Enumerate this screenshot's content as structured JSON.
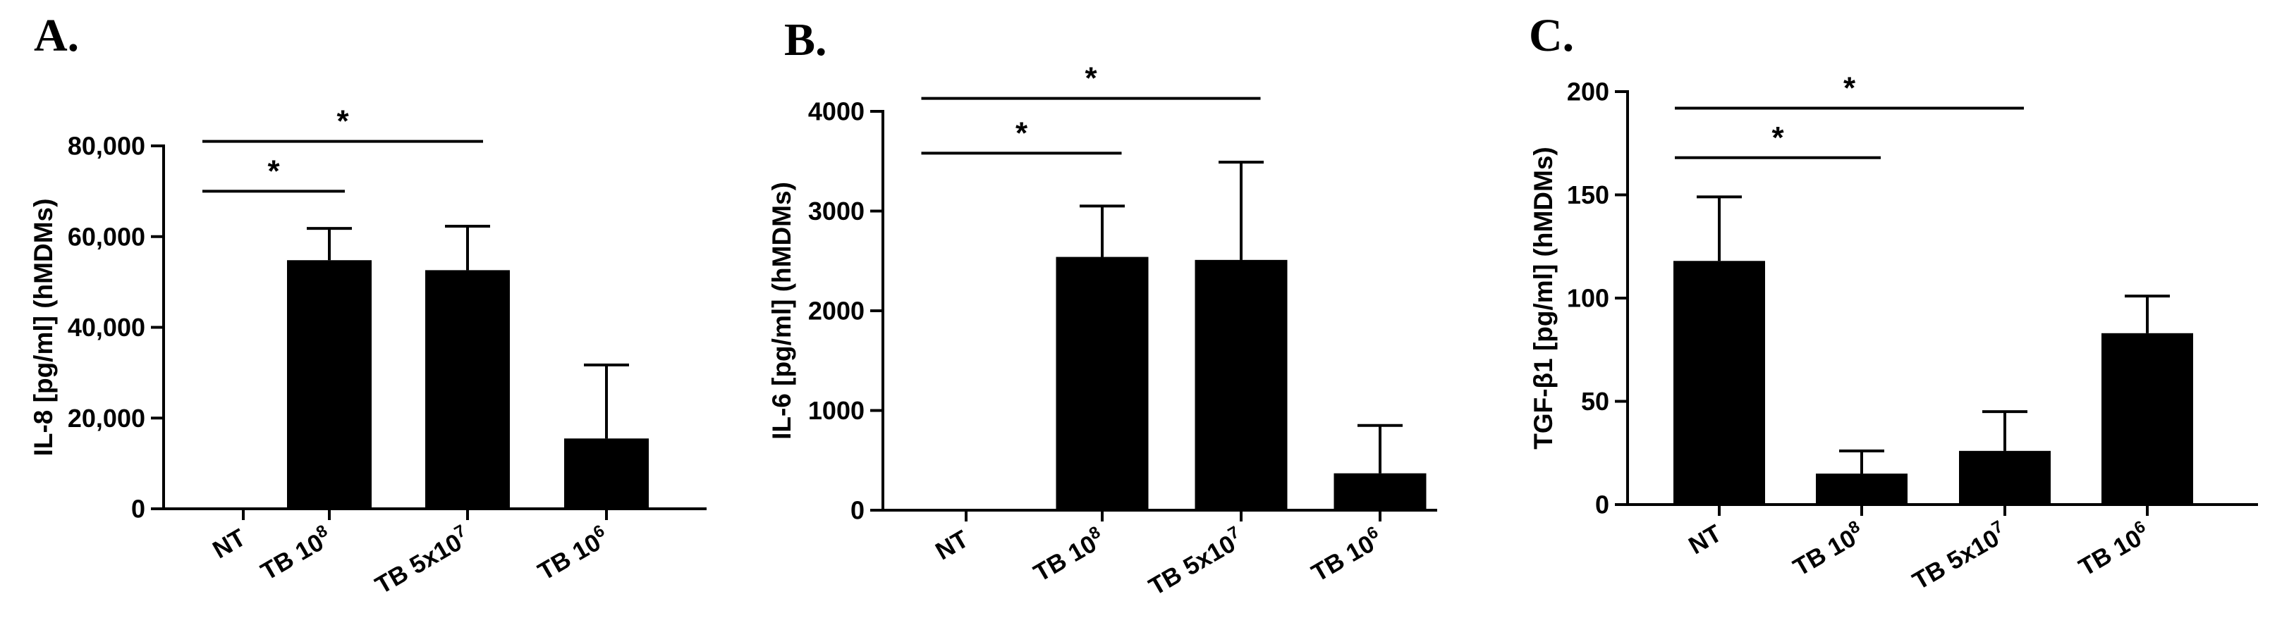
{
  "chart_data": [
    {
      "type": "bar",
      "panel_label": "A.",
      "ylabel": "IL-8 [pg/ml] (hMDMs)",
      "categories": [
        "NT",
        "TB 10^8",
        "TB 5x10^7",
        "TB 10^6"
      ],
      "category_labels": [
        {
          "base": "NT",
          "sup": ""
        },
        {
          "base": "TB 10",
          "sup": "8"
        },
        {
          "base": "TB 5x10",
          "sup": "7"
        },
        {
          "base": "TB 10",
          "sup": "6"
        }
      ],
      "values": [
        0,
        54800,
        52600,
        15500
      ],
      "errors": [
        0,
        7000,
        9700,
        16200
      ],
      "ylim": [
        0,
        80000
      ],
      "yticks": [
        0,
        20000,
        40000,
        60000,
        80000
      ],
      "ytick_labels": [
        "0",
        "20,000",
        "40,000",
        "60,000",
        "80,000"
      ],
      "bar_color": "#000000",
      "significance": [
        {
          "from": 0,
          "to": 1,
          "y": 70000,
          "label": "*"
        },
        {
          "from": 0,
          "to": 2,
          "y": 81000,
          "label": "*"
        }
      ]
    },
    {
      "type": "bar",
      "panel_label": "B.",
      "ylabel": "IL-6 [pg/ml] (hMDMs)",
      "categories": [
        "NT",
        "TB 10^8",
        "TB 5x10^7",
        "TB 10^6"
      ],
      "category_labels": [
        {
          "base": "NT",
          "sup": ""
        },
        {
          "base": "TB 10",
          "sup": "8"
        },
        {
          "base": "TB 5x10",
          "sup": "7"
        },
        {
          "base": "TB 10",
          "sup": "6"
        }
      ],
      "values": [
        0,
        2540,
        2510,
        370
      ],
      "errors": [
        0,
        510,
        980,
        480
      ],
      "ylim": [
        0,
        4000
      ],
      "yticks": [
        0,
        1000,
        2000,
        3000,
        4000
      ],
      "ytick_labels": [
        "0",
        "1000",
        "2000",
        "3000",
        "4000"
      ],
      "bar_color": "#000000",
      "significance": [
        {
          "from": 0,
          "to": 1,
          "y": 3580,
          "label": "*"
        },
        {
          "from": 0,
          "to": 2,
          "y": 4130,
          "label": "*"
        }
      ]
    },
    {
      "type": "bar",
      "panel_label": "C.",
      "ylabel": "TGF-β1 [pg/ml] (hMDMs)",
      "categories": [
        "NT",
        "TB 10^8",
        "TB 5x10^7",
        "TB 10^6"
      ],
      "category_labels": [
        {
          "base": "NT",
          "sup": ""
        },
        {
          "base": "TB 10",
          "sup": "8"
        },
        {
          "base": "TB 5x10",
          "sup": "7"
        },
        {
          "base": "TB 10",
          "sup": "6"
        }
      ],
      "values": [
        118,
        15,
        26,
        83
      ],
      "errors": [
        31,
        11,
        19,
        18
      ],
      "ylim": [
        0,
        200
      ],
      "yticks": [
        0,
        50,
        100,
        150,
        200
      ],
      "ytick_labels": [
        "0",
        "50",
        "100",
        "150",
        "200"
      ],
      "bar_color": "#000000",
      "significance": [
        {
          "from": 0,
          "to": 1,
          "y": 168,
          "label": "*"
        },
        {
          "from": 0,
          "to": 2,
          "y": 192,
          "label": "*"
        }
      ]
    }
  ]
}
